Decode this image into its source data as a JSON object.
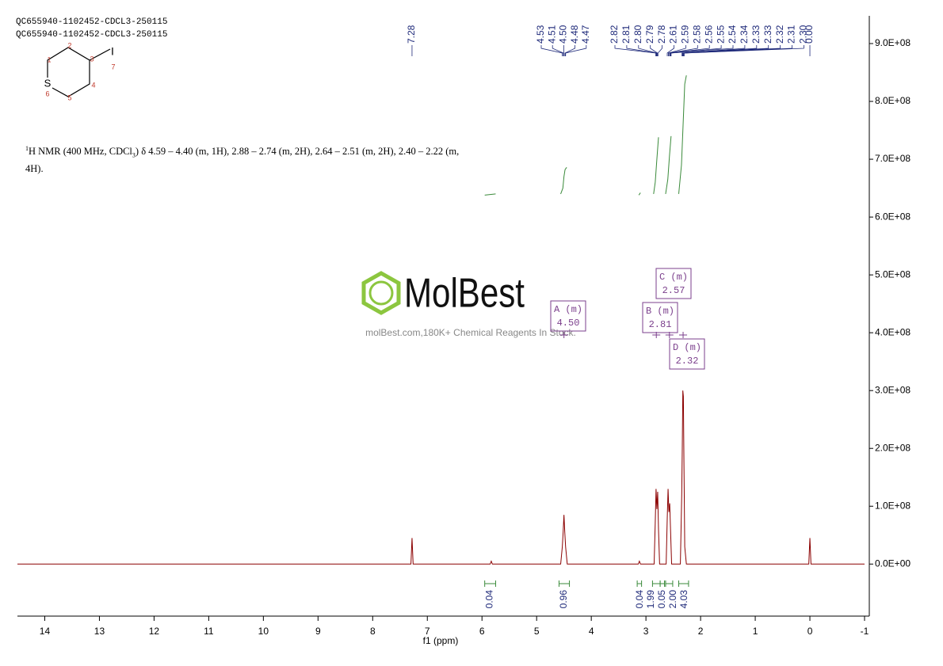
{
  "header": {
    "lines": [
      "QC655940-1102452-CDCL3-250115",
      "QC655940-1102452-CDCL3-250115"
    ]
  },
  "structure": {
    "atoms": [
      "S",
      "I"
    ],
    "numbers": [
      "1",
      "2",
      "3",
      "4",
      "5",
      "6",
      "7"
    ]
  },
  "nmr_text": {
    "sup": "1",
    "main": "H NMR (400 MHz, CDCl",
    "sub": "3",
    "rest": ") δ 4.59 – 4.40 (m, 1H), 2.88 – 2.74 (m, 2H), 2.64 – 2.51 (m, 2H), 2.40 – 2.22 (m, 4H)."
  },
  "watermark": {
    "brand": "MolBest",
    "tagline": "molBest.com,180K+ Chemical Reagents In Stock."
  },
  "chart_data": {
    "type": "line",
    "x_label": "f1 (ppm)",
    "xlim": [
      14.5,
      -1
    ],
    "xticks": [
      14,
      13,
      12,
      11,
      10,
      9,
      8,
      7,
      6,
      5,
      4,
      3,
      2,
      1,
      0,
      -1
    ],
    "ylim": [
      -90000000,
      950000000
    ],
    "yticks": [
      {
        "value": 0,
        "label": "0.0E+00"
      },
      {
        "value": 100000000,
        "label": "1.0E+08"
      },
      {
        "value": 200000000,
        "label": "2.0E+08"
      },
      {
        "value": 300000000,
        "label": "3.0E+08"
      },
      {
        "value": 400000000,
        "label": "4.0E+08"
      },
      {
        "value": 500000000,
        "label": "5.0E+08"
      },
      {
        "value": 600000000,
        "label": "6.0E+08"
      },
      {
        "value": 700000000,
        "label": "7.0E+08"
      },
      {
        "value": 800000000,
        "label": "8.0E+08"
      },
      {
        "value": 900000000,
        "label": "9.0E+08"
      }
    ],
    "series": [
      {
        "color": "#8b0000",
        "x": [
          14.5,
          7.3,
          7.28,
          7.26,
          5.85,
          5.83,
          5.81,
          4.56,
          4.53,
          4.515,
          4.5,
          4.485,
          4.47,
          4.44,
          3.14,
          3.12,
          3.1,
          2.85,
          2.83,
          2.815,
          2.8,
          2.785,
          2.77,
          2.75,
          2.63,
          2.61,
          2.595,
          2.58,
          2.565,
          2.55,
          2.53,
          2.37,
          2.345,
          2.335,
          2.325,
          2.315,
          2.305,
          2.29,
          2.26,
          0.02,
          0,
          -0.02,
          -1
        ],
        "values": [
          0,
          0,
          45000000,
          0,
          0,
          5000000,
          0,
          0,
          30000000,
          55000000,
          85000000,
          55000000,
          30000000,
          0,
          0,
          5000000,
          0,
          0,
          70000000,
          130000000,
          95000000,
          125000000,
          60000000,
          0,
          0,
          80000000,
          130000000,
          90000000,
          105000000,
          60000000,
          0,
          0,
          120000000,
          200000000,
          300000000,
          290000000,
          180000000,
          30000000,
          0,
          0,
          45000000,
          0,
          0
        ]
      },
      {
        "color": "#3a8a3a",
        "x": [
          5.95,
          5.75,
          null,
          4.56,
          4.52,
          4.5,
          4.48,
          4.45,
          null,
          3.13,
          3.1,
          null,
          2.86,
          2.83,
          2.8,
          2.77,
          null,
          2.64,
          2.6,
          2.57,
          2.54,
          null,
          2.4,
          2.35,
          2.32,
          2.29,
          2.26
        ],
        "values": [
          638000000,
          640000000,
          null,
          640000000,
          650000000,
          670000000,
          682000000,
          686000000,
          null,
          638000000,
          642000000,
          null,
          640000000,
          660000000,
          700000000,
          738000000,
          null,
          640000000,
          665000000,
          705000000,
          740000000,
          null,
          640000000,
          690000000,
          760000000,
          830000000,
          845000000
        ]
      }
    ],
    "peak_labels": [
      7.28,
      4.53,
      4.51,
      {
        "value": 4.5,
        "label": "4.50"
      },
      4.48,
      4.47,
      2.82,
      2.81,
      {
        "value": 2.8,
        "label": "2.80"
      },
      2.79,
      2.78,
      2.61,
      2.59,
      2.58,
      2.56,
      2.55,
      2.54,
      2.34,
      2.33,
      2.33,
      2.32,
      2.31,
      {
        "value": 2.3,
        "label": "2.30"
      },
      {
        "value": 0,
        "label": "0.00"
      }
    ],
    "integrals": [
      0.04,
      0.96,
      0.04,
      1.99,
      0.05,
      {
        "value": 2,
        "label": "2.00"
      },
      4.03
    ],
    "integral_ranges": [
      [
        5.95,
        5.75
      ],
      [
        4.59,
        4.4
      ],
      [
        3.16,
        3.08
      ],
      [
        2.88,
        2.74
      ],
      [
        2.74,
        2.66
      ],
      [
        2.64,
        2.51
      ],
      [
        2.4,
        2.22
      ]
    ],
    "multiplets": [
      {
        "label": "A (m)",
        "shift": {
          "value": 4.5,
          "label": "4.50"
        }
      },
      {
        "label": "B (m)",
        "shift": 2.81
      },
      {
        "label": "C (m)",
        "shift": 2.57
      },
      {
        "label": "D (m)",
        "shift": 2.32
      }
    ]
  }
}
